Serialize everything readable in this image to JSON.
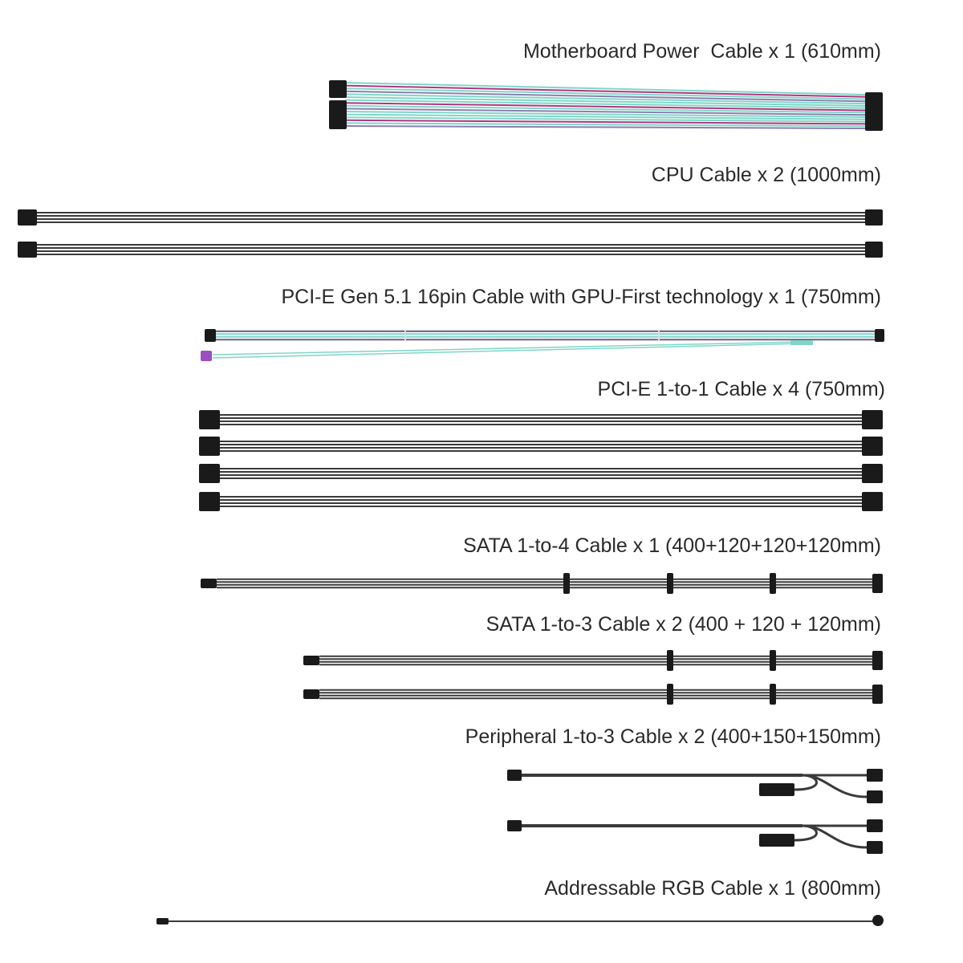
{
  "cables": [
    {
      "id": "motherboard",
      "label": "Motherboard Power  Cable x 1 (610mm)",
      "style": "rgb"
    },
    {
      "id": "cpu",
      "label": "CPU Cable x 2 (1000mm)",
      "style": "black"
    },
    {
      "id": "pcie-gen51",
      "label": "PCI-E Gen 5.1 16pin Cable with GPU-First technology x 1 (750mm)",
      "style": "rgb"
    },
    {
      "id": "pcie-1to1",
      "label": "PCI-E 1-to-1 Cable x 4 (750mm)",
      "style": "black"
    },
    {
      "id": "sata-1to4",
      "label": "SATA 1-to-4 Cable x 1 (400+120+120+120mm)",
      "style": "black"
    },
    {
      "id": "sata-1to3",
      "label": "SATA 1-to-3 Cable x 2 (400 + 120 + 120mm)",
      "style": "black"
    },
    {
      "id": "peripheral",
      "label": "Peripheral 1-to-3 Cable x 2 (400+150+150mm)",
      "style": "black"
    },
    {
      "id": "argb",
      "label": "Addressable RGB Cable x 1 (800mm)",
      "style": "black"
    }
  ],
  "colors": {
    "teal": "#7fd6c8",
    "magenta": "#b0357f",
    "purple": "#9a4fc0",
    "wire": "#3a3a3a",
    "connector": "#1a1a1a",
    "text": "#2a2a2a"
  }
}
